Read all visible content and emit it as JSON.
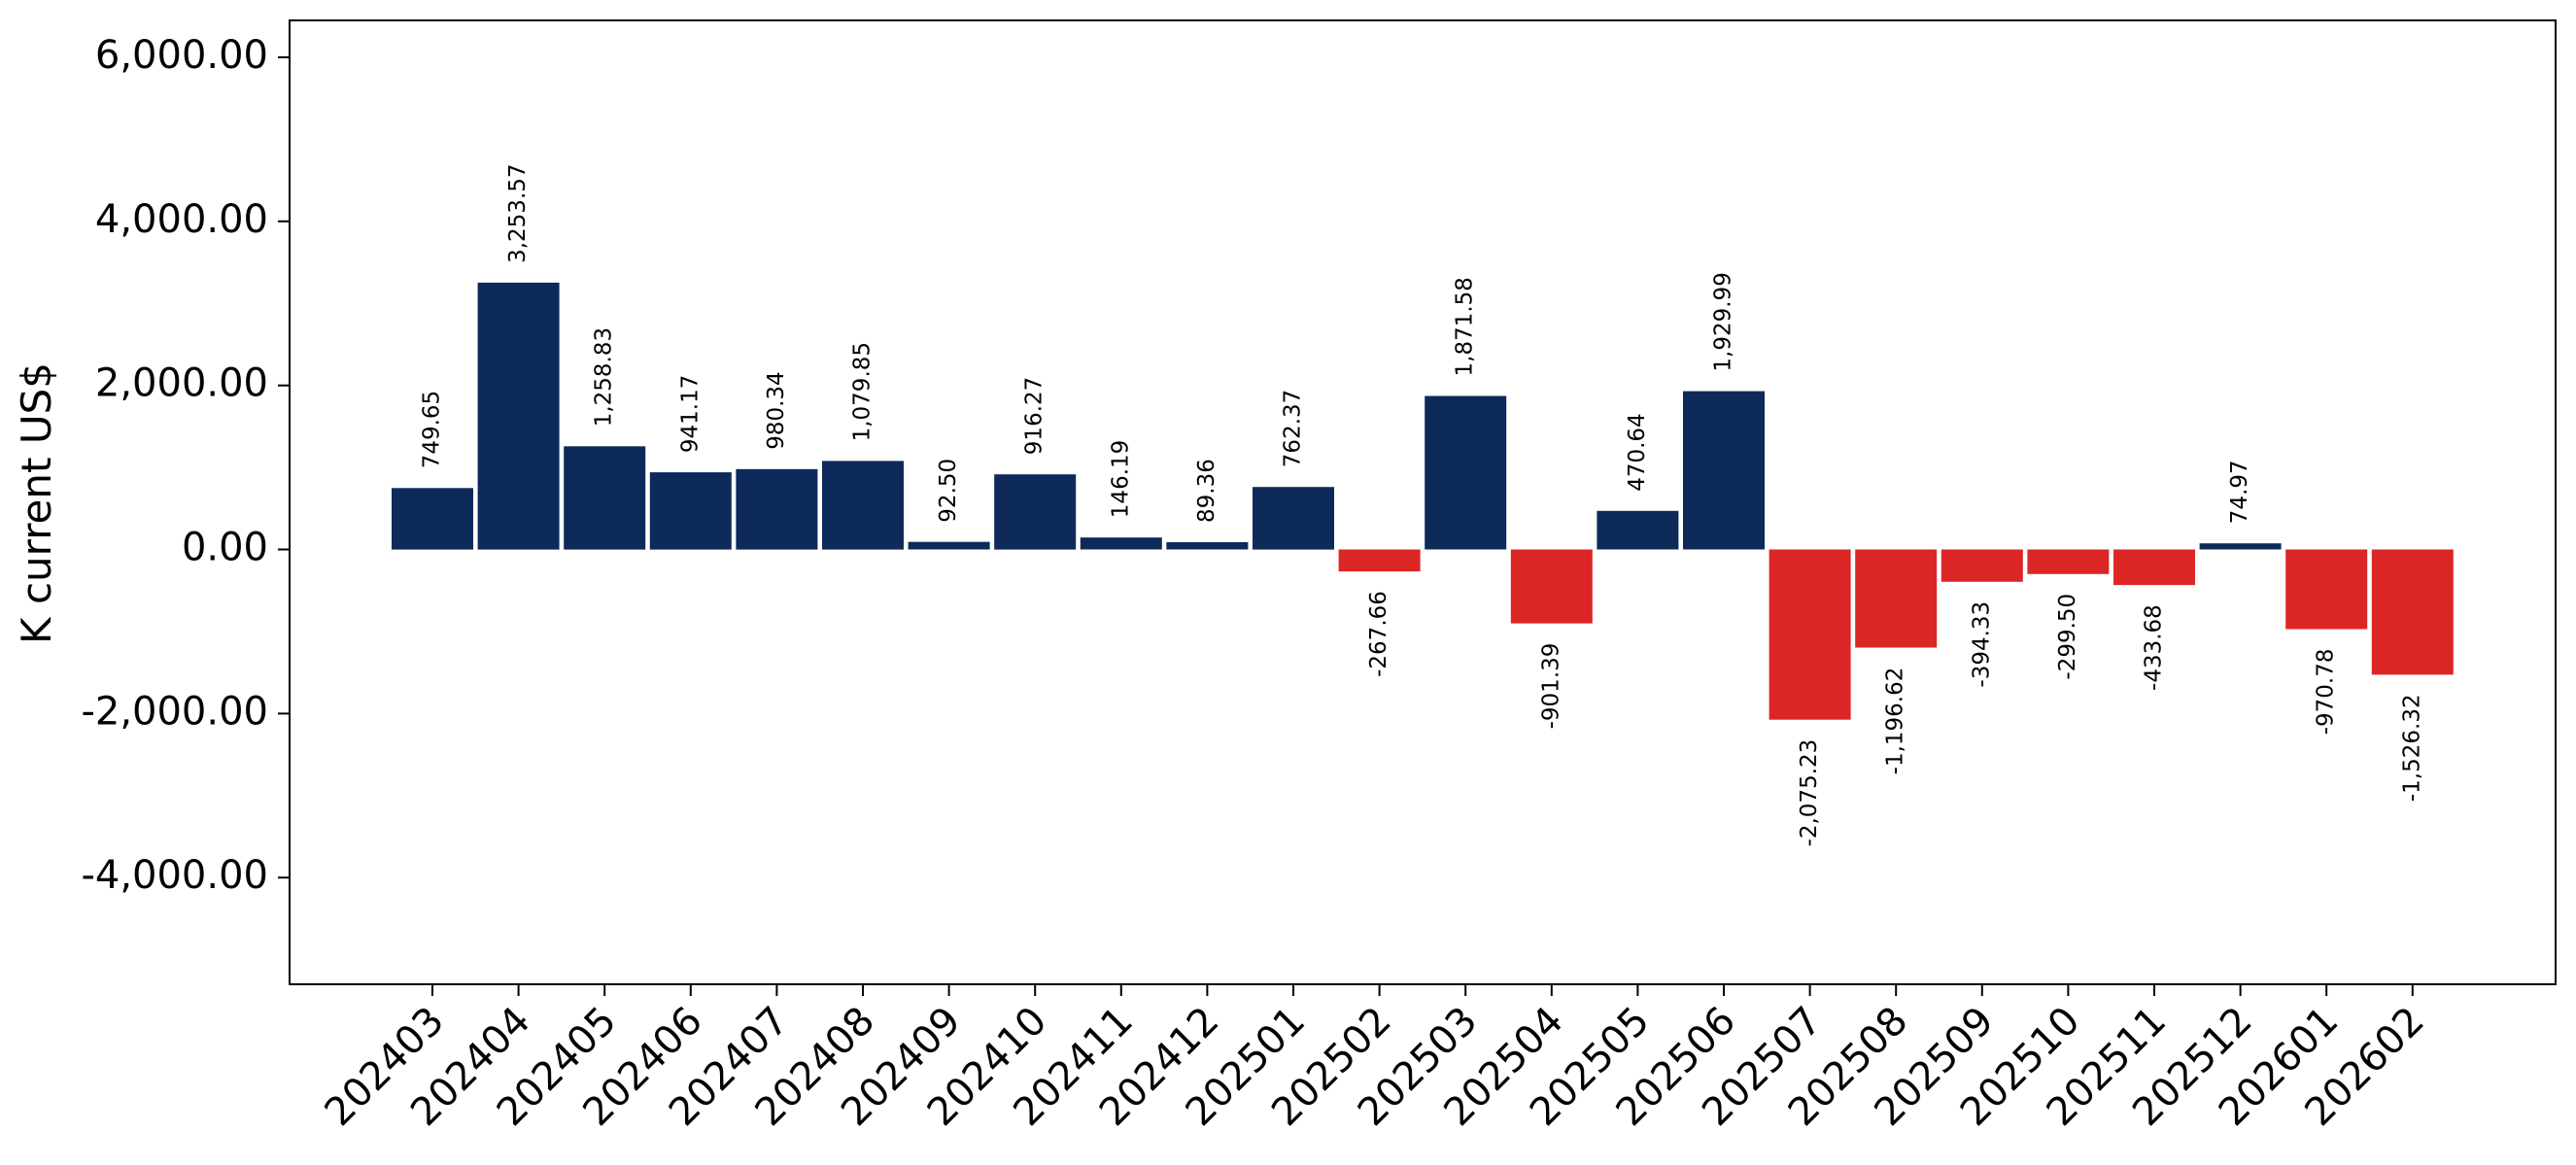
{
  "chart_data": {
    "type": "bar",
    "title": "",
    "xlabel": "",
    "ylabel": "K current US$",
    "ylim": [
      -5300,
      6450
    ],
    "yticks": [
      -4000,
      -2000,
      0,
      2000,
      4000,
      6000
    ],
    "ytick_labels": [
      "-4,000.00",
      "-2,000.00",
      "0.00",
      "2,000.00",
      "4,000.00",
      "6,000.00"
    ],
    "grid": false,
    "legend": "none",
    "colors": {
      "positive": "#0e2a5a",
      "negative": "#dc2626"
    },
    "categories": [
      "202403",
      "202404",
      "202405",
      "202406",
      "202407",
      "202408",
      "202409",
      "202410",
      "202411",
      "202412",
      "202501",
      "202502",
      "202503",
      "202504",
      "202505",
      "202506",
      "202507",
      "202508",
      "202509",
      "202510",
      "202511",
      "202512",
      "202601",
      "202602"
    ],
    "values": [
      749.65,
      3253.57,
      1258.83,
      941.17,
      980.34,
      1079.85,
      92.5,
      916.27,
      146.19,
      89.36,
      762.37,
      -267.66,
      1871.58,
      -901.39,
      470.64,
      1929.99,
      -2075.23,
      -1196.62,
      -394.33,
      -299.5,
      -433.68,
      74.97,
      -970.78,
      -1526.32
    ],
    "value_labels": [
      "749.65",
      "3,253.57",
      "1,258.83",
      "941.17",
      "980.34",
      "1,079.85",
      "92.50",
      "916.27",
      "146.19",
      "89.36",
      "762.37",
      "-267.66",
      "1,871.58",
      "-901.39",
      "470.64",
      "1,929.99",
      "-2,075.23",
      "-1,196.62",
      "-394.33",
      "-299.50",
      "-433.68",
      "74.97",
      "-970.78",
      "-1,526.32"
    ]
  }
}
